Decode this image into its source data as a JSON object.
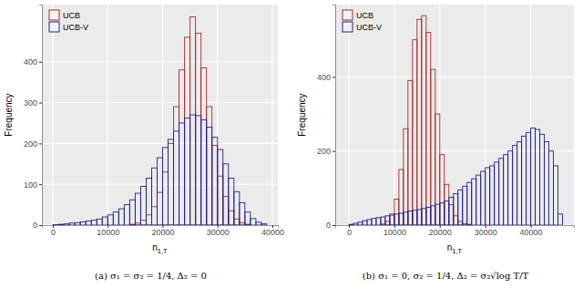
{
  "chart_data": [
    {
      "type": "histogram",
      "caption": "(a) σ₁ = σ₂ = 1/4, Δ₂ = 0",
      "x_label": "n1,T",
      "y_label": "Frequency",
      "bins": [
        0,
        1000,
        2000,
        3000,
        4000,
        5000,
        6000,
        7000,
        8000,
        9000,
        10000,
        11000,
        12000,
        13000,
        14000,
        15000,
        16000,
        17000,
        18000,
        19000,
        20000,
        21000,
        22000,
        23000,
        24000,
        25000,
        26000,
        27000,
        28000,
        29000,
        30000,
        31000,
        32000,
        33000,
        34000,
        35000,
        36000,
        37000,
        38000,
        39000
      ],
      "series": [
        {
          "name": "UCB",
          "color": "#a52a2a",
          "values": [
            0,
            0,
            0,
            0,
            0,
            0,
            0,
            0,
            0,
            0,
            0,
            0,
            0,
            0,
            2,
            5,
            12,
            25,
            45,
            80,
            130,
            200,
            290,
            380,
            460,
            510,
            470,
            385,
            290,
            195,
            120,
            70,
            35,
            15,
            6,
            2,
            0,
            0,
            0
          ]
        },
        {
          "name": "UCB-V",
          "color": "#23238e",
          "values": [
            1,
            2,
            3,
            5,
            6,
            8,
            10,
            12,
            15,
            20,
            25,
            32,
            40,
            50,
            62,
            78,
            95,
            115,
            140,
            165,
            190,
            210,
            230,
            250,
            262,
            270,
            268,
            258,
            240,
            215,
            185,
            150,
            115,
            82,
            55,
            32,
            16,
            7,
            3
          ]
        }
      ],
      "xlim": [
        -2000,
        41000
      ],
      "ylim": [
        0,
        540
      ],
      "xticks": [
        0,
        10000,
        20000,
        30000,
        40000
      ],
      "yticks": [
        0,
        100,
        200,
        300,
        400
      ],
      "grid": true,
      "legend": "top-left"
    },
    {
      "type": "histogram",
      "caption": "(b) σ₁ = 0, σ₂ = 1/4, Δ₂ = σ₂√log T/T",
      "x_label": "n1,T",
      "y_label": "Frequency",
      "bins": [
        0,
        1000,
        2000,
        3000,
        4000,
        5000,
        6000,
        7000,
        8000,
        9000,
        10000,
        11000,
        12000,
        13000,
        14000,
        15000,
        16000,
        17000,
        18000,
        19000,
        20000,
        21000,
        22000,
        23000,
        24000,
        25000,
        26000,
        27000,
        28000,
        29000,
        30000,
        31000,
        32000,
        33000,
        34000,
        35000,
        36000,
        37000,
        38000,
        39000,
        40000,
        41000,
        42000,
        43000,
        44000,
        45000,
        46000,
        47000
      ],
      "series": [
        {
          "name": "UCB",
          "color": "#a52a2a",
          "values": [
            0,
            0,
            0,
            0,
            0,
            0,
            0,
            3,
            10,
            30,
            70,
            150,
            260,
            390,
            500,
            555,
            565,
            520,
            420,
            300,
            190,
            110,
            55,
            25,
            10,
            4,
            2,
            0,
            0,
            0,
            0,
            0,
            0,
            0,
            0,
            0,
            0,
            0,
            0,
            0,
            0,
            0,
            0,
            0,
            0,
            0,
            0
          ]
        },
        {
          "name": "UCB-V",
          "color": "#23238e",
          "values": [
            2,
            5,
            8,
            12,
            15,
            18,
            20,
            22,
            25,
            27,
            30,
            32,
            35,
            38,
            40,
            42,
            45,
            48,
            52,
            56,
            60,
            65,
            75,
            85,
            95,
            105,
            115,
            125,
            135,
            145,
            155,
            160,
            170,
            180,
            190,
            200,
            215,
            225,
            240,
            250,
            262,
            258,
            245,
            225,
            200,
            160,
            30
          ]
        }
      ],
      "xlim": [
        -3000,
        49500
      ],
      "ylim": [
        0,
        595
      ],
      "xticks": [
        0,
        10000,
        20000,
        30000,
        40000
      ],
      "yticks": [
        0,
        200,
        400
      ],
      "grid": true,
      "legend": "top-left"
    }
  ]
}
